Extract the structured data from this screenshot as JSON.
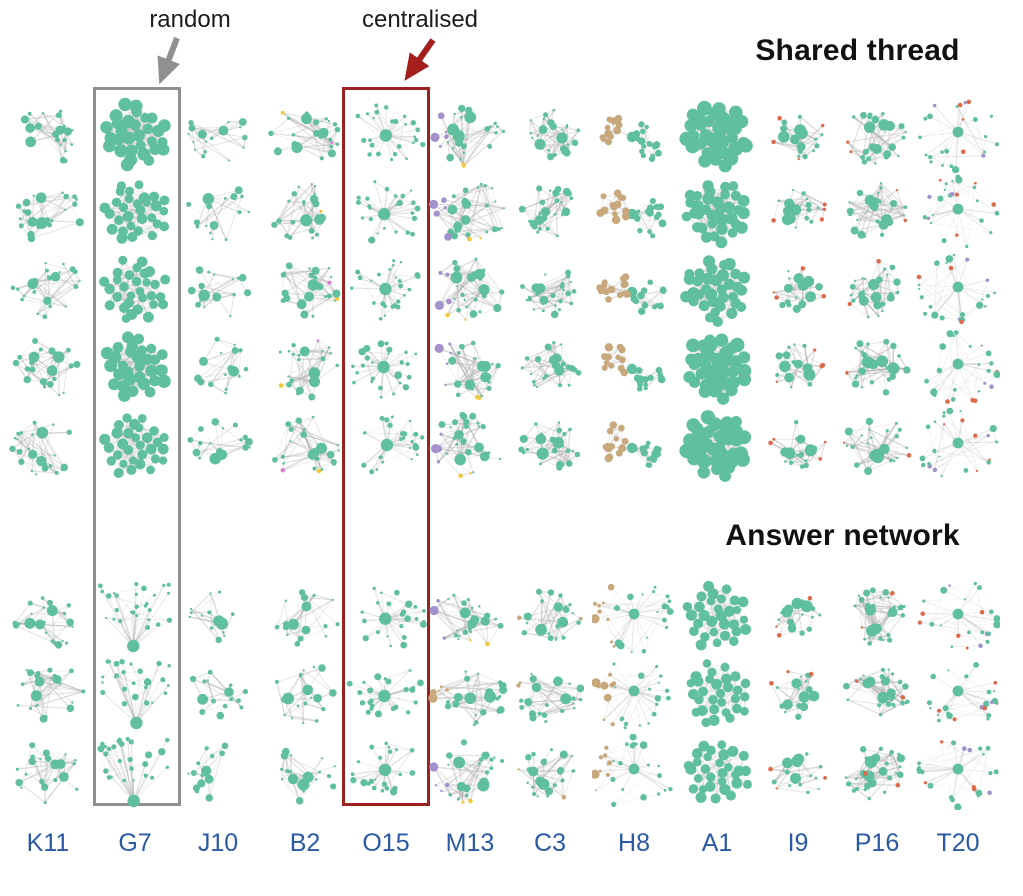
{
  "figure": {
    "annotations": {
      "random_label": "random",
      "centralised_label": "centralised"
    },
    "sections": [
      {
        "id": "shared",
        "title": "Shared thread",
        "rows": 5
      },
      {
        "id": "answer",
        "title": "Answer network",
        "rows": 3
      }
    ],
    "highlights": [
      {
        "column": "G7",
        "style": "gray",
        "meaning": "random"
      },
      {
        "column": "O15",
        "style": "red",
        "meaning": "centralised"
      }
    ],
    "colors": {
      "node_green": "#5FBF9F",
      "node_tan": "#C7A87D",
      "node_purple": "#A291CB",
      "node_orange": "#DF6A4B",
      "node_yellow": "#F0C93F",
      "node_pink": "#DB7FD0",
      "edge_gray": "#ABABAB",
      "label_blue": "#2A59A6",
      "box_gray": "#8F9092",
      "box_red": "#9B2121",
      "arrow_gray": "#8F9092",
      "arrow_red": "#A51E1E",
      "title_color": "#111111"
    },
    "columns": [
      {
        "id": "K11",
        "label": "K11",
        "shared": {
          "layout": "organic",
          "n": 24,
          "hubs": 3,
          "spread": 0.95,
          "edges": 2.3,
          "accents": []
        },
        "answer": {
          "layout": "organic",
          "n": 22,
          "hubs": 3,
          "spread": 0.95,
          "edges": 2.0,
          "accents": []
        }
      },
      {
        "id": "G7",
        "label": "G7",
        "shared": {
          "layout": "dense",
          "n": 30,
          "edges": 4.8,
          "strong_rows": [
            0,
            3
          ],
          "accents": []
        },
        "answer": {
          "layout": "fan",
          "n": 28,
          "edges": 1.7,
          "accents": []
        }
      },
      {
        "id": "J10",
        "label": "J10",
        "shared": {
          "layout": "organic",
          "n": 18,
          "hubs": 2,
          "spread": 0.88,
          "edges": 1.6,
          "accents": []
        },
        "answer": {
          "layout": "organic",
          "n": 15,
          "hubs": 2,
          "spread": 0.85,
          "edges": 1.5,
          "accents": []
        }
      },
      {
        "id": "B2",
        "label": "B2",
        "shared": {
          "layout": "organic",
          "n": 24,
          "hubs": 3,
          "spread": 0.95,
          "edges": 2.2,
          "accents": [
            {
              "color": "yellow",
              "count": 1,
              "side": "scatter"
            },
            {
              "color": "pink",
              "count": 1,
              "side": "scatter"
            }
          ]
        },
        "answer": {
          "layout": "organic",
          "n": 20,
          "hubs": 3,
          "spread": 0.92,
          "edges": 1.9,
          "accents": []
        }
      },
      {
        "id": "O15",
        "label": "O15",
        "shared": {
          "layout": "star",
          "n": 26,
          "edges": 1.4,
          "accents": []
        },
        "answer": {
          "layout": "star",
          "n": 24,
          "edges": 1.4,
          "accents": []
        }
      },
      {
        "id": "M13",
        "label": "M13",
        "shared": {
          "layout": "organic",
          "n": 30,
          "hubs": 4,
          "spread": 1.0,
          "edges": 2.2,
          "accents": [
            {
              "color": "purple",
              "count": 5,
              "side": "left"
            },
            {
              "color": "yellow",
              "count": 2,
              "side": "bottom"
            }
          ]
        },
        "answer": {
          "layout": "organic",
          "n": 26,
          "hubs": 4,
          "spread": 1.0,
          "edges": 2.0,
          "accents": [
            {
              "color": "purple",
              "count": 4,
              "side": "left"
            },
            {
              "color": "yellow",
              "count": 2,
              "side": "bottom"
            }
          ],
          "row_accents": {
            "1": [
              {
                "color": "tan",
                "count": 5,
                "side": "left"
              }
            ]
          }
        }
      },
      {
        "id": "C3",
        "label": "C3",
        "shared": {
          "layout": "organic",
          "n": 26,
          "hubs": 3,
          "spread": 0.78,
          "edges": 2.5,
          "accents": []
        },
        "answer": {
          "layout": "organic",
          "n": 24,
          "hubs": 3,
          "spread": 0.88,
          "edges": 1.9,
          "accents": [
            {
              "color": "tan",
              "count": 2,
              "side": "periphery"
            }
          ]
        }
      },
      {
        "id": "H8",
        "label": "H8",
        "shared": {
          "layout": "twolobe",
          "n": 30,
          "edges": 3.0,
          "accents": []
        },
        "answer": {
          "layout": "radial",
          "n": 28,
          "edges": 1.8,
          "accents": [
            {
              "color": "tan",
              "count": 9,
              "side": "left"
            }
          ]
        }
      },
      {
        "id": "A1",
        "label": "A1",
        "shared": {
          "layout": "ball",
          "n": 34,
          "edges": 5.2,
          "strong_rows": [
            0,
            3,
            4
          ],
          "accents": []
        },
        "answer": {
          "layout": "dense",
          "n": 30,
          "edges": 3.2,
          "accents": []
        }
      },
      {
        "id": "I9",
        "label": "I9",
        "shared": {
          "layout": "organic",
          "n": 22,
          "hubs": 5,
          "spread": 0.75,
          "edges": 2.1,
          "accents": [
            {
              "color": "orange",
              "count": 4,
              "side": "periphery"
            }
          ]
        },
        "answer": {
          "layout": "organic",
          "n": 20,
          "hubs": 5,
          "spread": 0.78,
          "edges": 1.9,
          "accents": [
            {
              "color": "orange",
              "count": 3,
              "side": "periphery"
            }
          ]
        }
      },
      {
        "id": "P16",
        "label": "P16",
        "shared": {
          "layout": "organic",
          "n": 28,
          "hubs": 4,
          "spread": 0.9,
          "edges": 2.5,
          "accents": [
            {
              "color": "orange",
              "count": 2,
              "side": "periphery"
            }
          ]
        },
        "answer": {
          "layout": "organic",
          "n": 30,
          "hubs": 5,
          "spread": 0.85,
          "edges": 2.8,
          "accents": [
            {
              "color": "orange",
              "count": 2,
              "side": "scatter"
            }
          ]
        }
      },
      {
        "id": "T20",
        "label": "T20",
        "shared": {
          "layout": "radial",
          "n": 26,
          "edges": 1.5,
          "accents": [
            {
              "color": "orange",
              "count": 5,
              "side": "scatter"
            },
            {
              "color": "purple",
              "count": 3,
              "side": "scatter"
            }
          ]
        },
        "answer": {
          "layout": "radial",
          "n": 26,
          "edges": 1.6,
          "accents": [
            {
              "color": "orange",
              "count": 5,
              "side": "scatter"
            },
            {
              "color": "purple",
              "count": 3,
              "side": "scatter"
            }
          ]
        }
      }
    ]
  }
}
